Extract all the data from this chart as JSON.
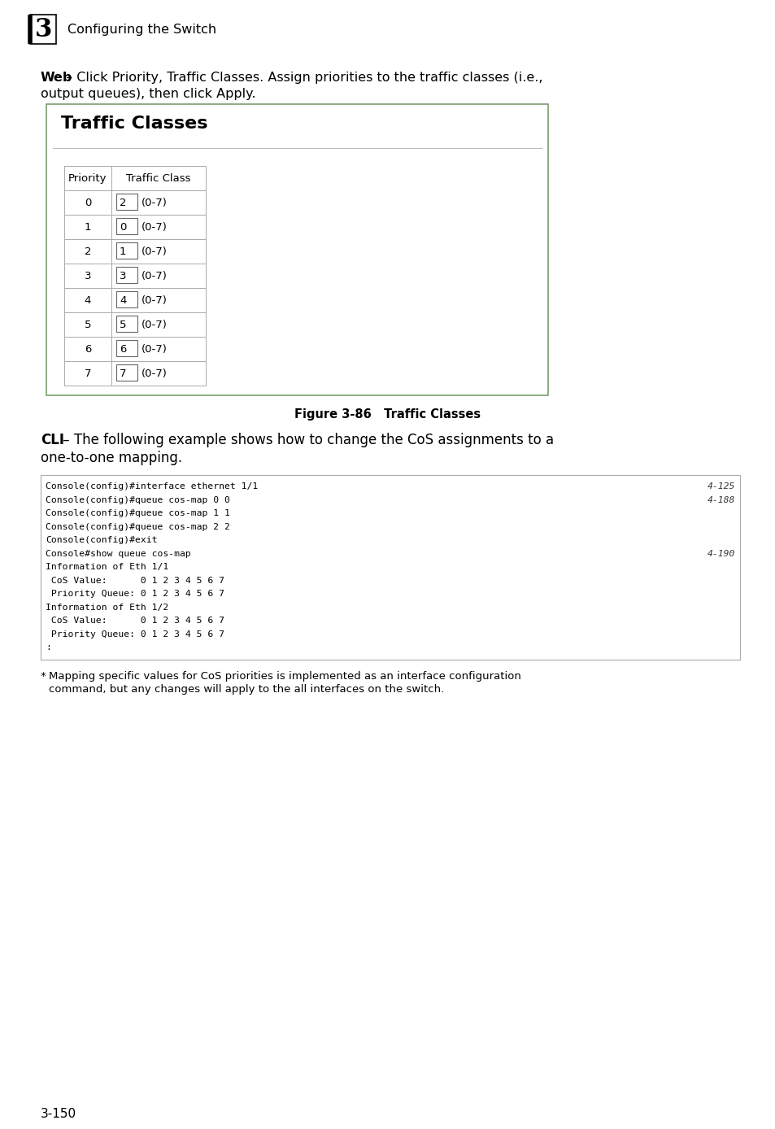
{
  "page_number": "3-150",
  "chapter_title": "Configuring the Switch",
  "web_bold": "Web",
  "web_rest": " – Click Priority, Traffic Classes. Assign priorities to the traffic classes (i.e.,",
  "web_line2": "output queues), then click Apply.",
  "panel_title": "Traffic Classes",
  "table_headers": [
    "Priority",
    "Traffic Class"
  ],
  "table_rows": [
    [
      "0",
      "2",
      "(0-7)"
    ],
    [
      "1",
      "0",
      "(0-7)"
    ],
    [
      "2",
      "1",
      "(0-7)"
    ],
    [
      "3",
      "3",
      "(0-7)"
    ],
    [
      "4",
      "4",
      "(0-7)"
    ],
    [
      "5",
      "5",
      "(0-7)"
    ],
    [
      "6",
      "6",
      "(0-7)"
    ],
    [
      "7",
      "7",
      "(0-7)"
    ]
  ],
  "figure_caption": "Figure 3-86   Traffic Classes",
  "cli_bold": "CLI",
  "cli_rest": " – The following example shows how to change the CoS assignments to a",
  "cli_line2": "one-to-one mapping.",
  "cli_lines": [
    [
      "Console(config)#interface ethernet 1/1",
      "4-125"
    ],
    [
      "Console(config)#queue cos-map 0 0",
      "4-188"
    ],
    [
      "Console(config)#queue cos-map 1 1",
      ""
    ],
    [
      "Console(config)#queue cos-map 2 2",
      ""
    ],
    [
      "Console(config)#exit",
      ""
    ],
    [
      "Console#show queue cos-map",
      "4-190"
    ],
    [
      "Information of Eth 1/1",
      ""
    ],
    [
      " CoS Value:      0 1 2 3 4 5 6 7",
      ""
    ],
    [
      " Priority Queue: 0 1 2 3 4 5 6 7",
      ""
    ],
    [
      "Information of Eth 1/2",
      ""
    ],
    [
      " CoS Value:      0 1 2 3 4 5 6 7",
      ""
    ],
    [
      " Priority Queue: 0 1 2 3 4 5 6 7",
      ""
    ],
    [
      ":",
      ""
    ]
  ],
  "footnote_text1": "    Mapping specific values for CoS priorities is implemented as an interface configuration",
  "footnote_text2": "    command, but any changes will apply to the all interfaces on the switch.",
  "bg_color": "#ffffff",
  "panel_border_color": "#7a9e6e",
  "table_border_color": "#aaaaaa",
  "code_border_color": "#aaaaaa",
  "input_border_color": "#666666"
}
